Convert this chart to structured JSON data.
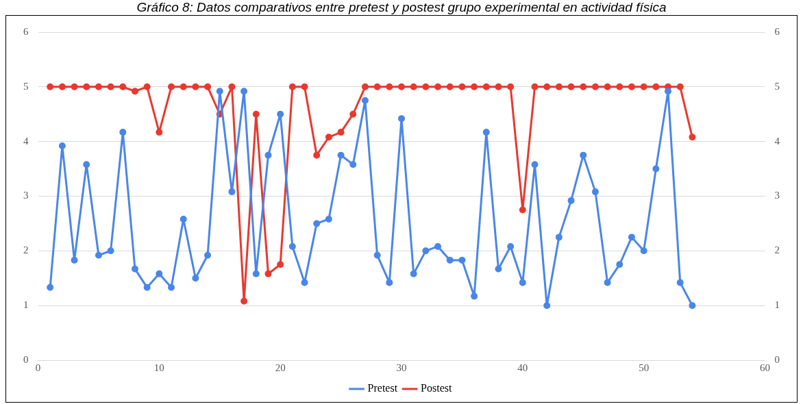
{
  "chart_data": {
    "type": "line",
    "title": "Gráfico 8: Datos comparativos entre pretest y postest grupo experimental en actividad física",
    "x": [
      1,
      2,
      3,
      4,
      5,
      6,
      7,
      8,
      9,
      10,
      11,
      12,
      13,
      14,
      15,
      16,
      17,
      18,
      19,
      20,
      21,
      22,
      23,
      24,
      25,
      26,
      27,
      28,
      29,
      30,
      31,
      32,
      33,
      34,
      35,
      36,
      37,
      38,
      39,
      40,
      41,
      42,
      43,
      44,
      45,
      46,
      47,
      48,
      49,
      50,
      51,
      52,
      53,
      54
    ],
    "series": [
      {
        "name": "Pretest",
        "color": "#4a86e8",
        "values": [
          1.33,
          3.92,
          1.83,
          3.58,
          1.92,
          2.0,
          4.17,
          1.67,
          1.33,
          1.58,
          1.33,
          2.58,
          1.5,
          1.92,
          4.92,
          3.08,
          4.92,
          1.58,
          3.75,
          4.5,
          2.08,
          1.42,
          2.5,
          2.58,
          3.75,
          3.58,
          4.75,
          1.92,
          1.42,
          4.42,
          1.58,
          2.0,
          2.08,
          1.83,
          1.83,
          1.17,
          4.17,
          1.67,
          2.08,
          1.42,
          3.58,
          1.0,
          2.25,
          2.92,
          3.75,
          3.08,
          1.42,
          1.75,
          2.25,
          2.0,
          3.5,
          4.92,
          1.42,
          1.0
        ]
      },
      {
        "name": "Postest",
        "color": "#e8392f",
        "values": [
          5,
          5,
          5,
          5,
          5,
          5,
          5,
          4.92,
          5,
          4.17,
          5,
          5,
          5,
          5,
          4.5,
          5,
          1.08,
          4.5,
          1.58,
          1.75,
          5,
          5,
          3.75,
          4.08,
          4.17,
          4.5,
          5,
          5,
          5,
          5,
          5,
          5,
          5,
          5,
          5,
          5,
          5,
          5,
          5,
          2.75,
          5,
          5,
          5,
          5,
          5,
          5,
          5,
          5,
          5,
          5,
          5,
          5,
          5,
          4.08
        ]
      }
    ],
    "xlim": [
      0,
      60
    ],
    "xticks": [
      0,
      10,
      20,
      30,
      40,
      50,
      60
    ],
    "ylim": [
      0,
      6
    ],
    "yticks": [
      0,
      1,
      2,
      3,
      4,
      5,
      6
    ],
    "y2lim": [
      0,
      6
    ],
    "y2ticks": [
      0,
      1,
      2,
      3,
      4,
      5,
      6
    ],
    "grid": "y",
    "legend": "bottom",
    "marker": "circle",
    "line_style": "solid"
  }
}
